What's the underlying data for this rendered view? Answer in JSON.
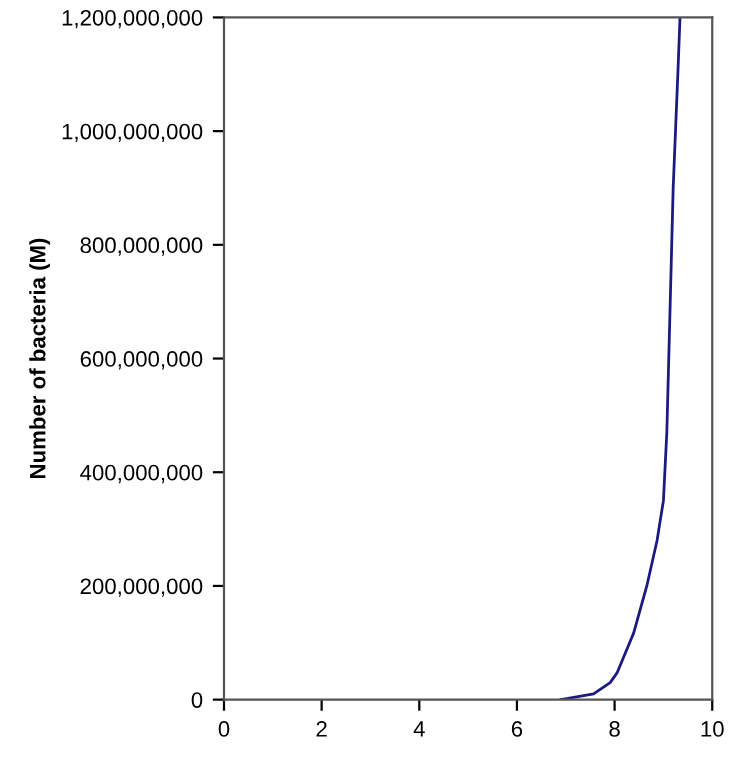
{
  "chart_data": {
    "type": "line",
    "ylabel": "Number of bacteria (M)",
    "series": [
      {
        "color": "#1a1a80",
        "x": [
          6.9,
          7.57,
          7.91,
          8.05,
          8.39,
          8.66,
          8.87,
          9.0,
          9.07,
          9.14,
          9.2,
          9.3,
          9.34
        ],
        "values": [
          0,
          10000000,
          30000000,
          47000000,
          117000000,
          200000000,
          280000000,
          350000000,
          470000000,
          700000000,
          900000000,
          1110000000,
          1200000000
        ]
      }
    ],
    "xlim": [
      0,
      10
    ],
    "xticks": [
      0,
      2,
      4,
      6,
      8,
      10
    ],
    "ylim": [
      0,
      1200000000
    ],
    "yticks": [
      {
        "value": 0,
        "label": "0"
      },
      {
        "value": 200000000,
        "label": "200,000,000"
      },
      {
        "value": 400000000,
        "label": "400,000,000"
      },
      {
        "value": 600000000,
        "label": "600,000,000"
      },
      {
        "value": 800000000,
        "label": "800,000,000"
      },
      {
        "value": 1000000000,
        "label": "1,000,000,000"
      },
      {
        "value": 1200000000,
        "label": "1,200,000,000"
      }
    ],
    "grid": false,
    "legend": false,
    "marker": "none",
    "line_style": "solid"
  }
}
